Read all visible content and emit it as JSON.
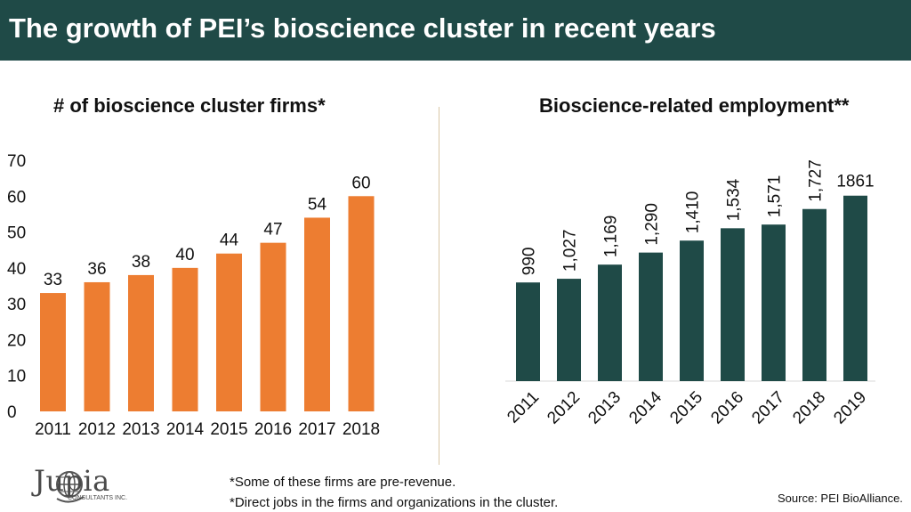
{
  "header": {
    "title": "The growth of PEI’s bioscience cluster in recent years"
  },
  "chart_data": [
    {
      "type": "bar",
      "title": "# of bioscience cluster firms*",
      "categories": [
        "2011",
        "2012",
        "2013",
        "2014",
        "2015",
        "2016",
        "2017",
        "2018"
      ],
      "values": [
        33,
        36,
        38,
        40,
        44,
        47,
        54,
        60
      ],
      "data_labels": [
        "33",
        "36",
        "38",
        "40",
        "44",
        "47",
        "54",
        "60"
      ],
      "yticks": [
        "0",
        "10",
        "20",
        "30",
        "40",
        "50",
        "60",
        "70"
      ],
      "ylim": [
        0,
        70
      ],
      "color": "#ed7d31",
      "grid": false
    },
    {
      "type": "bar",
      "title": "Bioscience-related employment**",
      "categories": [
        "2011",
        "2012",
        "2013",
        "2014",
        "2015",
        "2016",
        "2017",
        "2018",
        "2019"
      ],
      "values": [
        990,
        1027,
        1169,
        1290,
        1410,
        1534,
        1571,
        1727,
        1861
      ],
      "data_labels": [
        "990",
        "1,027",
        "1,169",
        "1,290",
        "1,410",
        "1,534",
        "1,571",
        "1,727",
        "1861"
      ],
      "ylim": [
        0,
        2100
      ],
      "color": "#1f4a47",
      "grid": false
    }
  ],
  "footer": {
    "note1": "*Some of these firms are pre-revenue.",
    "note2": "*Direct jobs in the firms and organizations in the cluster.",
    "source": "Source: PEI BioAlliance."
  },
  "logo": {
    "name": "Jupia",
    "subtitle": "CONSULTANTS INC.",
    "icon": "globe-icon"
  }
}
